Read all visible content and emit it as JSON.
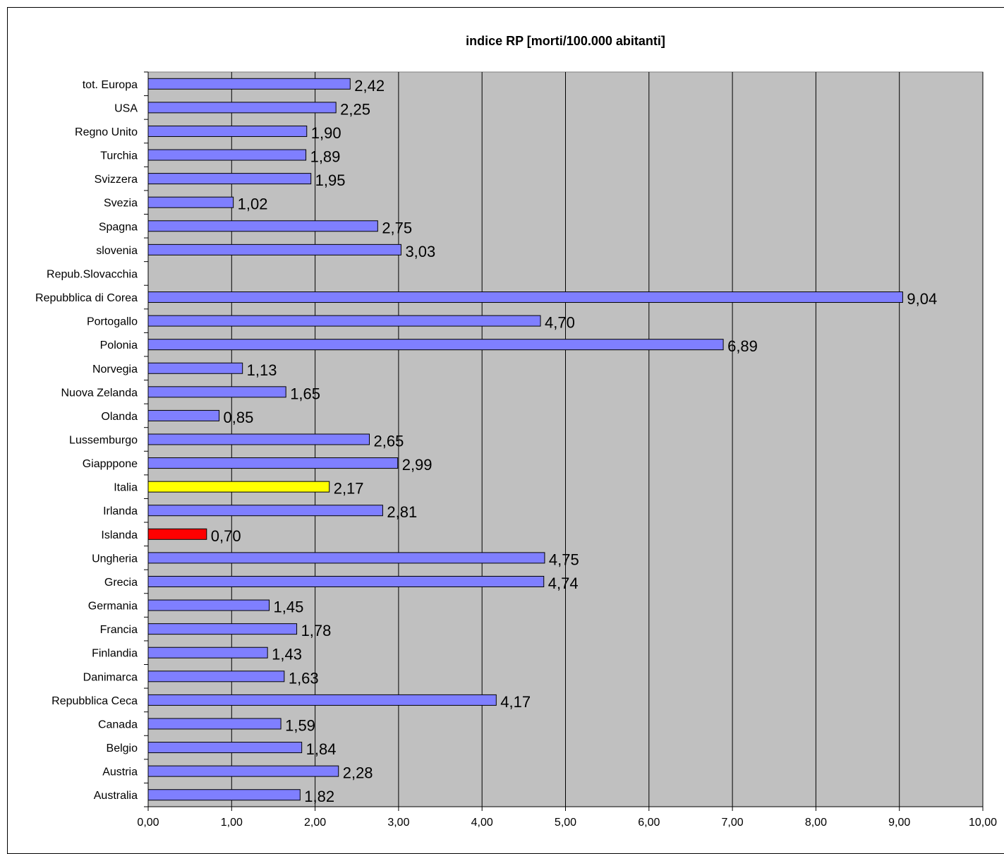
{
  "chart_data": {
    "type": "bar",
    "orientation": "horizontal",
    "title": "indice RP [morti/100.000 abitanti]",
    "xlabel": "",
    "ylabel": "",
    "xlim": [
      0,
      10
    ],
    "grid": true,
    "legend": "none",
    "x_ticks": [
      "0,00",
      "1,00",
      "2,00",
      "3,00",
      "4,00",
      "5,00",
      "6,00",
      "7,00",
      "8,00",
      "9,00",
      "10,00"
    ],
    "categories": [
      "tot. Europa",
      "USA",
      "Regno Unito",
      "Turchia",
      "Svizzera",
      "Svezia",
      "Spagna",
      "slovenia",
      "Repub.Slovacchia",
      "Repubblica di Corea",
      "Portogallo",
      "Polonia",
      "Norvegia",
      "Nuova Zelanda",
      "Olanda",
      "Lussemburgo",
      "Giapppone",
      "Italia",
      "Irlanda",
      "Islanda",
      "Ungheria",
      "Grecia",
      "Germania",
      "Francia",
      "Finlandia",
      "Danimarca",
      "Repubblica Ceca",
      "Canada",
      "Belgio",
      "Austria",
      "Australia"
    ],
    "values": [
      2.42,
      2.25,
      1.9,
      1.89,
      1.95,
      1.02,
      2.75,
      3.03,
      null,
      9.04,
      4.7,
      6.89,
      1.13,
      1.65,
      0.85,
      2.65,
      2.99,
      2.17,
      2.81,
      0.7,
      4.75,
      4.74,
      1.45,
      1.78,
      1.43,
      1.63,
      4.17,
      1.59,
      1.84,
      2.28,
      1.82
    ],
    "value_labels": [
      "2,42",
      "2,25",
      "1,90",
      "1,89",
      "1,95",
      "1,02",
      "2,75",
      "3,03",
      "",
      "9,04",
      "4,70",
      "6,89",
      "1,13",
      "1,65",
      "0,85",
      "2,65",
      "2,99",
      "2,17",
      "2,81",
      "0,70",
      "4,75",
      "4,74",
      "1,45",
      "1,78",
      "1,43",
      "1,63",
      "4,17",
      "1,59",
      "1,84",
      "2,28",
      "1,82"
    ],
    "colors": {
      "default": "#7f7fff",
      "Italia": "#ffff00",
      "Islanda": "#ff0000",
      "plot_bg": "#c0c0c0"
    }
  }
}
